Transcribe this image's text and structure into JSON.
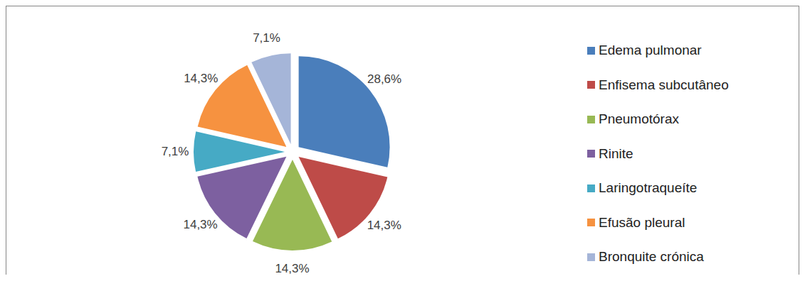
{
  "chart_data": {
    "type": "pie",
    "categories": [
      "Edema pulmonar",
      "Enfisema subcutâneo",
      "Pneumotórax",
      "Rinite",
      "Laringotraqueíte",
      "Efusão pleural",
      "Bronquite crónica"
    ],
    "values": [
      28.6,
      14.3,
      14.3,
      14.3,
      7.1,
      14.3,
      7.1
    ],
    "value_labels": [
      "28,6%",
      "14,3%",
      "14,3%",
      "14,3%",
      "7,1%",
      "14,3%",
      "7,1%"
    ],
    "colors": [
      "#4a7ebb",
      "#be4b48",
      "#98b954",
      "#7d60a0",
      "#46aac5",
      "#f69240",
      "#a5b5d8"
    ],
    "data_labels": true,
    "legend": "right"
  }
}
